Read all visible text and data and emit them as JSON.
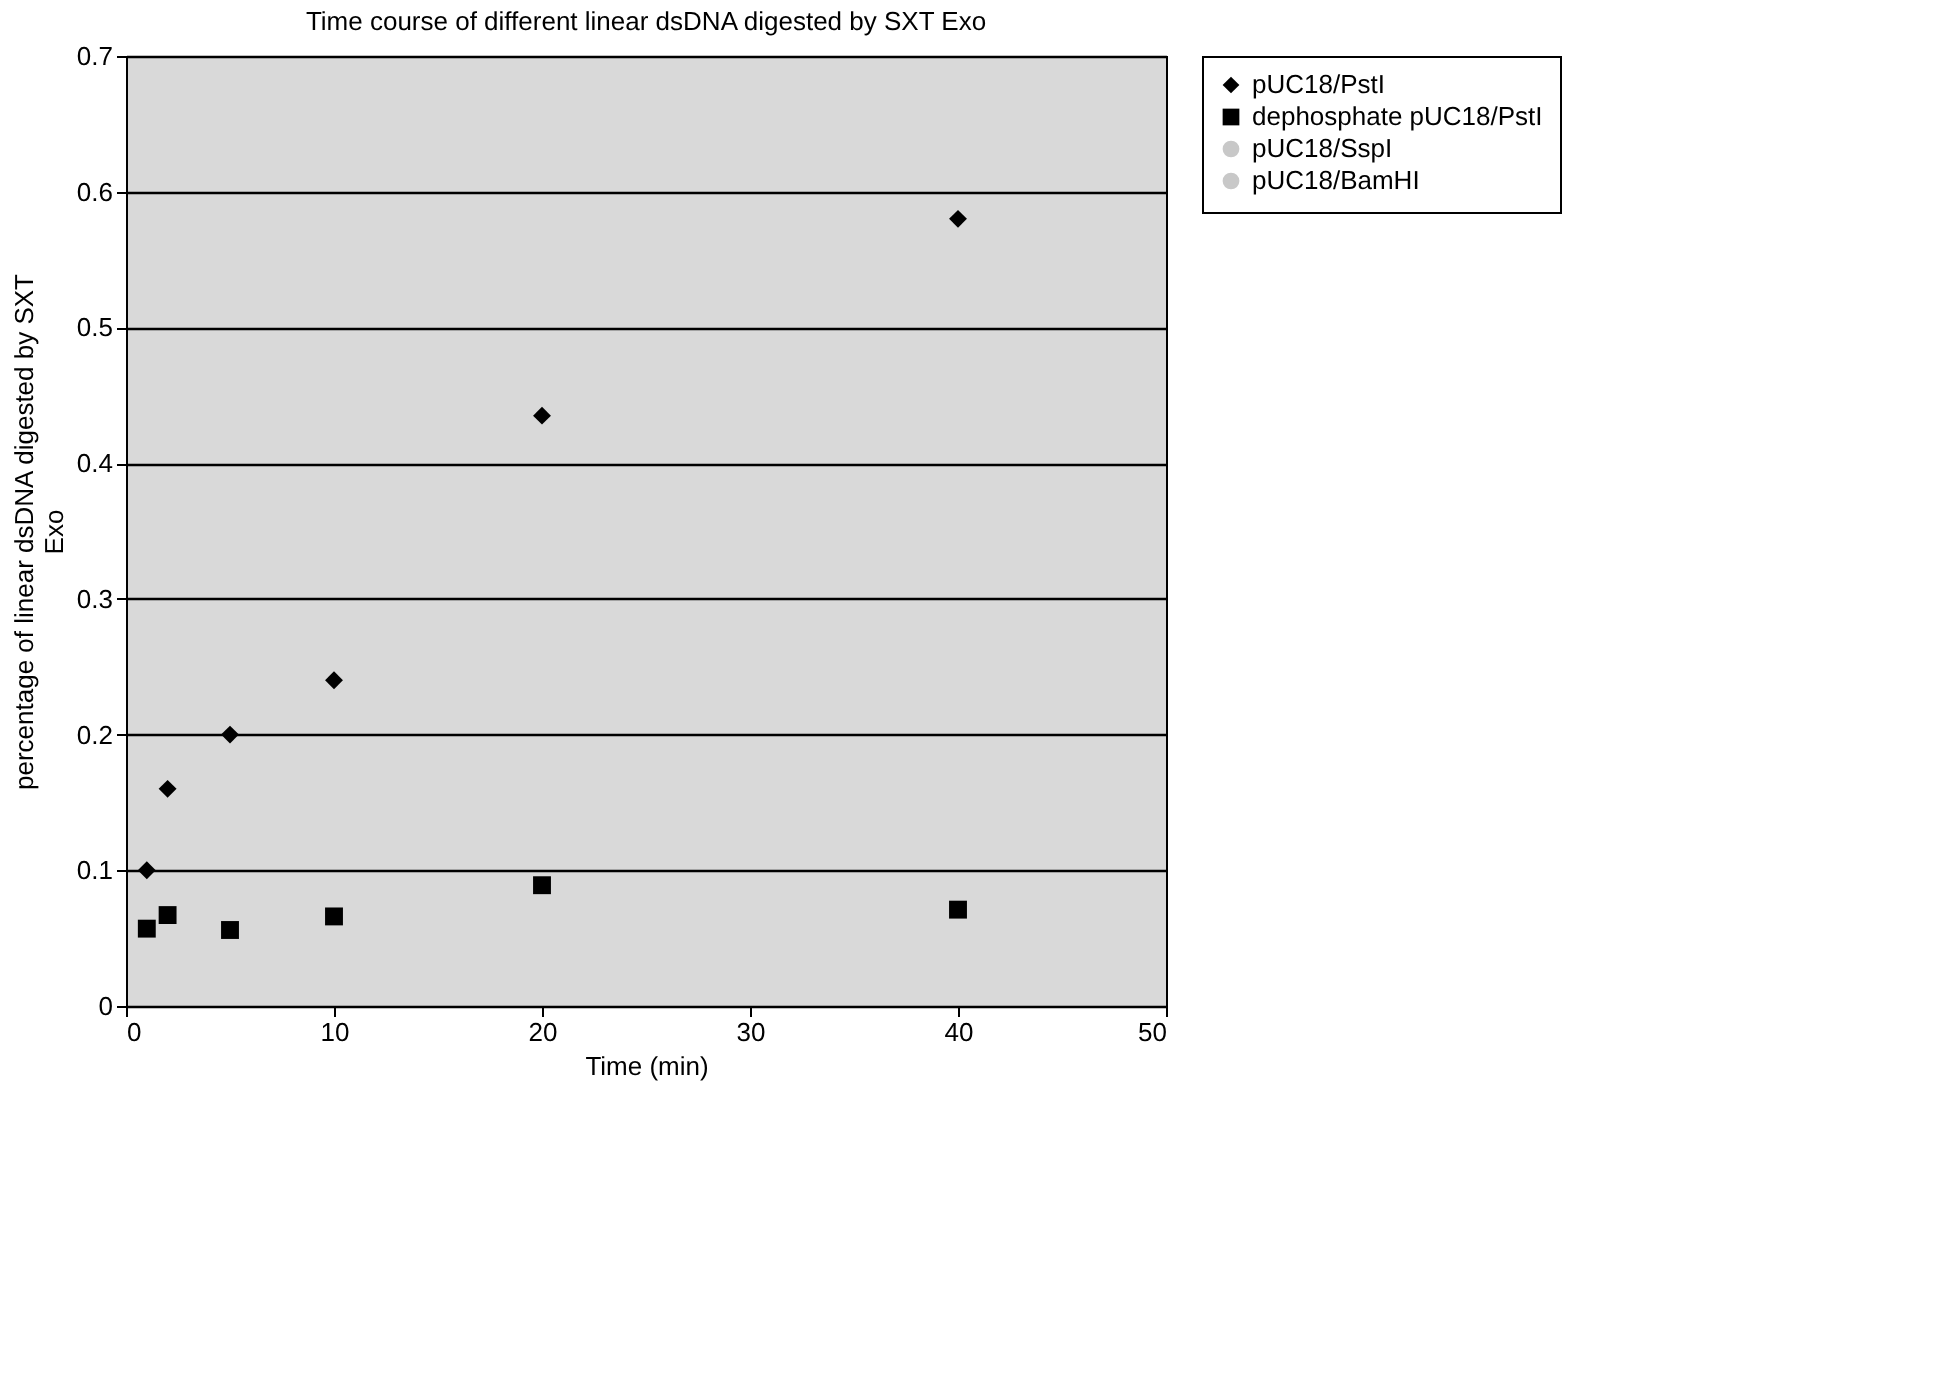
{
  "chart_data": {
    "type": "scatter",
    "title": "Time course of different linear dsDNA digested by SXT Exo",
    "xlabel": "Time (min)",
    "ylabel": "percentage of linear dsDNA digested by SXT Exo",
    "x": [
      1,
      2,
      5,
      10,
      20,
      40
    ],
    "series": [
      {
        "name": "pUC18/PstI",
        "color": "#000000",
        "marker": "diamond",
        "values": [
          0.1,
          0.16,
          0.2,
          0.24,
          0.435,
          0.58
        ]
      },
      {
        "name": "dephosphate pUC18/PstI",
        "color": "#000000",
        "marker": "square",
        "values": [
          0.057,
          0.067,
          0.056,
          0.066,
          0.089,
          0.071
        ]
      },
      {
        "name": "pUC18/SspI",
        "color": "#c8c8c8",
        "marker": "circle",
        "values": [
          null,
          null,
          null,
          null,
          null,
          null
        ]
      },
      {
        "name": "pUC18/BamHI",
        "color": "#c8c8c8",
        "marker": "circle",
        "values": [
          null,
          null,
          null,
          null,
          null,
          null
        ]
      }
    ],
    "xlim": [
      0,
      50
    ],
    "xticks": [
      0,
      10,
      20,
      30,
      40,
      50
    ],
    "ylim": [
      0,
      0.7
    ],
    "yticks": [
      0,
      0.1,
      0.2,
      0.3,
      0.4,
      0.5,
      0.6,
      0.7
    ],
    "grid": "y",
    "legend": "right"
  }
}
